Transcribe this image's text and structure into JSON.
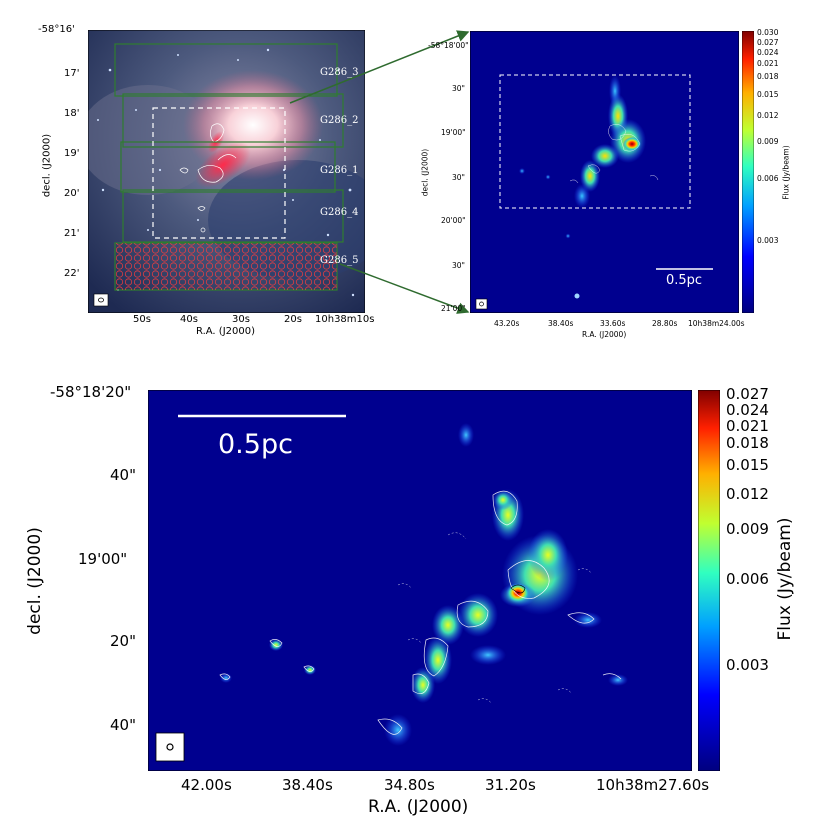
{
  "chart_data": [
    {
      "type": "heatmap",
      "panel": "top-left",
      "title": "",
      "image": "three-colour composite (infrared) of the G286 region with ALMA mosaic fields",
      "xlabel": "R.A. (J2000)",
      "ylabel": "decl. (J2000)",
      "xticks": [
        "50s",
        "40s",
        "30s",
        "20s",
        "10h38m10s"
      ],
      "yticks": [
        "-58°16'",
        "17'",
        "18'",
        "19'",
        "20'",
        "21'",
        "22'"
      ],
      "fields": [
        "G286_3",
        "G286_2",
        "G286_1",
        "G286_4",
        "G286_5"
      ]
    },
    {
      "type": "heatmap",
      "panel": "top-right",
      "title": "",
      "xlabel": "R.A. (J2000)",
      "ylabel": "decl. (J2000)",
      "xticks": [
        "43.20s",
        "38.40s",
        "33.60s",
        "28.80s",
        "10h38m24.00s"
      ],
      "yticks": [
        "-58°18'00\"",
        "30\"",
        "19'00\"",
        "30\"",
        "20'00\"",
        "30\"",
        "21'00\""
      ],
      "colorbar": {
        "label": "Flux (Jy/beam)",
        "ticks": [
          "0.030",
          "0.027",
          "0.024",
          "0.021",
          "0.018",
          "0.015",
          "0.012",
          "0.009",
          "0.006",
          "0.003"
        ],
        "values": [
          0.03,
          0.027,
          0.024,
          0.021,
          0.018,
          0.015,
          0.012,
          0.009,
          0.006,
          0.003
        ]
      },
      "scalebar": "0.5pc"
    },
    {
      "type": "heatmap",
      "panel": "bottom",
      "title": "",
      "xlabel": "R.A. (J2000)",
      "ylabel": "decl. (J2000)",
      "xticks": [
        "42.00s",
        "38.40s",
        "34.80s",
        "31.20s",
        "10h38m27.60s"
      ],
      "yticks": [
        "-58°18'20\"",
        "40\"",
        "19'00\"",
        "20\"",
        "40\""
      ],
      "colorbar": {
        "label": "Flux (Jy/beam)",
        "ticks": [
          "0.027",
          "0.024",
          "0.021",
          "0.018",
          "0.015",
          "0.012",
          "0.009",
          "0.006",
          "0.003"
        ],
        "values": [
          0.027,
          0.024,
          0.021,
          0.018,
          0.015,
          0.012,
          0.009,
          0.006,
          0.003
        ]
      },
      "scalebar": "0.5pc"
    }
  ]
}
